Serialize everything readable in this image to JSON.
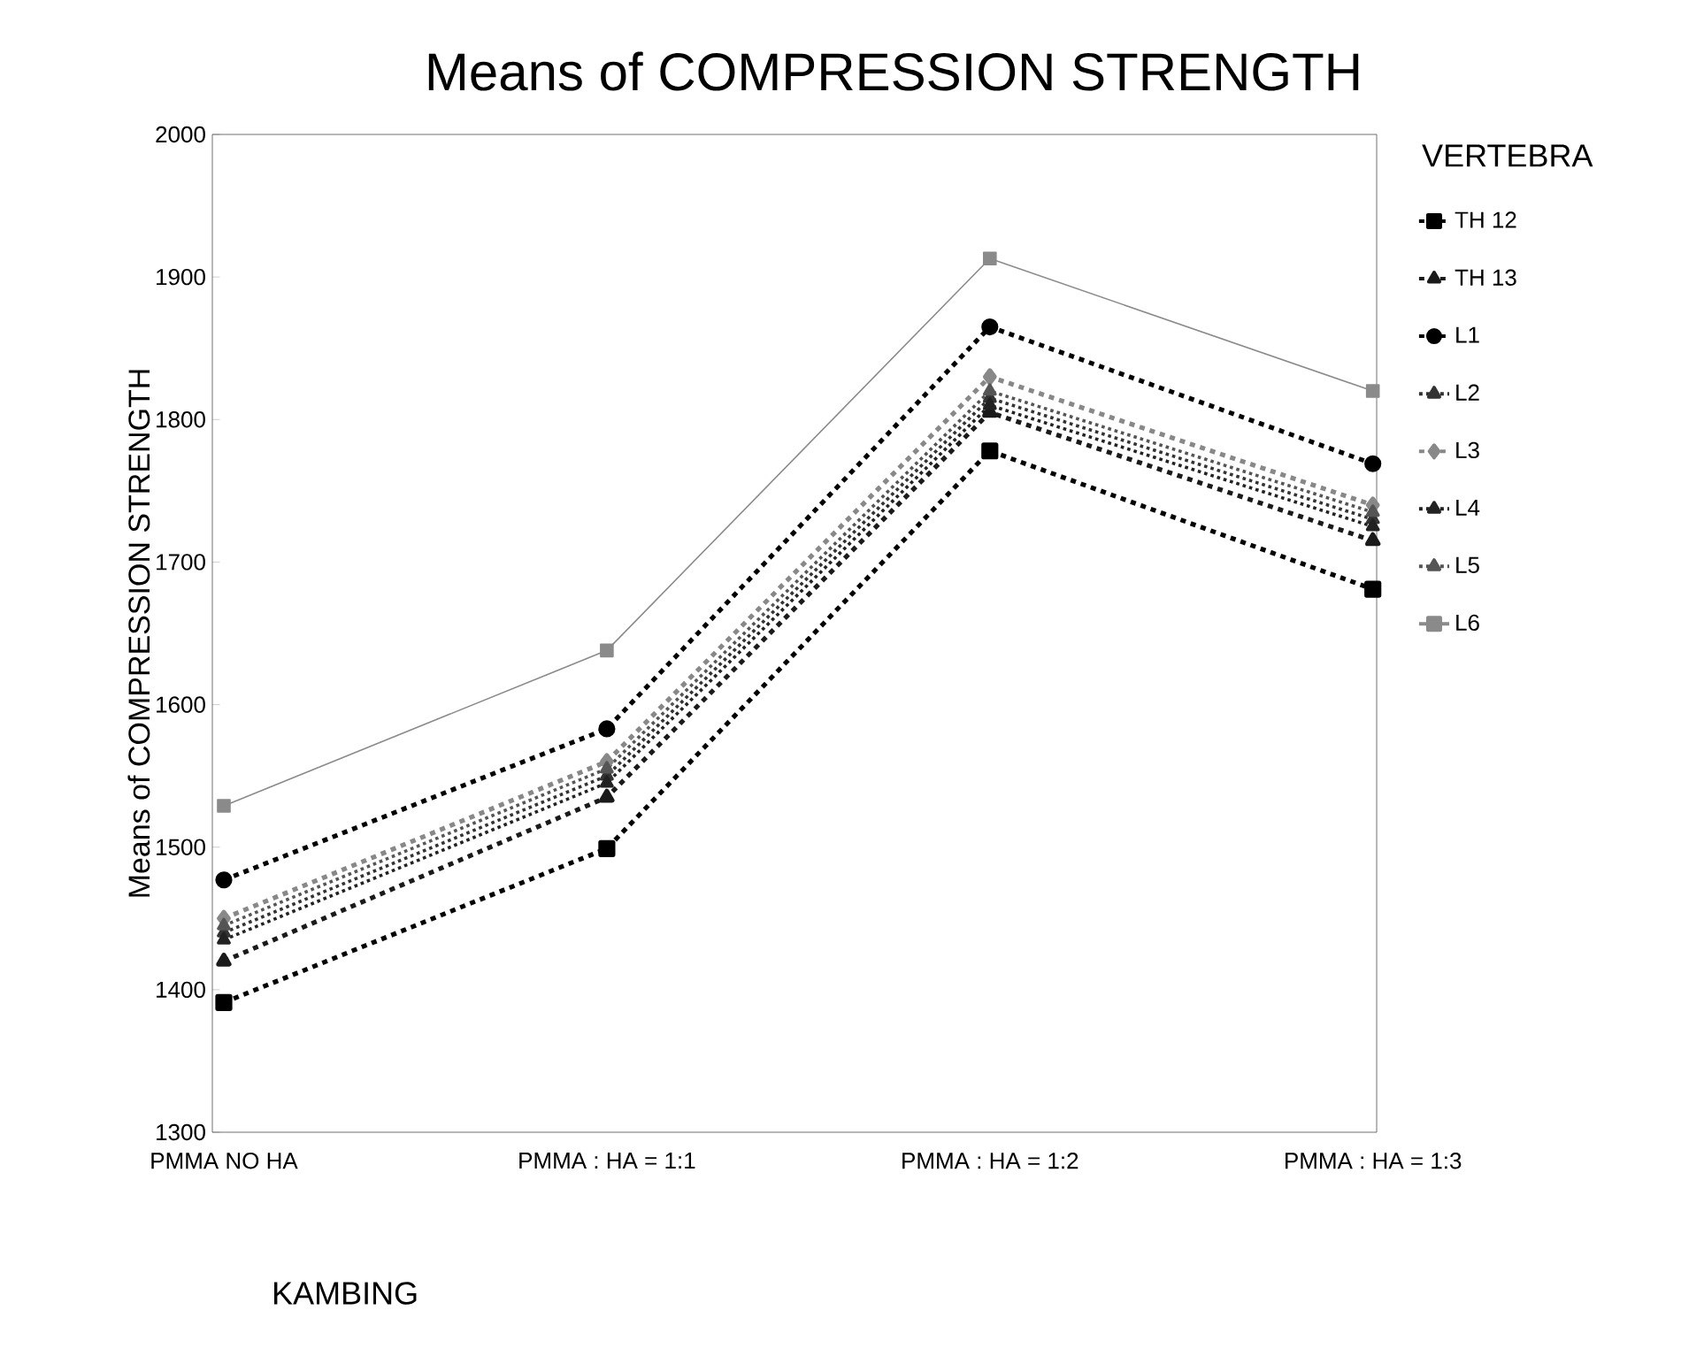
{
  "chart_data": {
    "type": "line",
    "title": "Means of COMPRESSION STRENGTH",
    "xlabel": "KAMBING",
    "ylabel": "Means of COMPRESSION STRENGTH",
    "legend_title": "VERTEBRA",
    "categories": [
      "PMMA NO HA",
      "PMMA : HA = 1:1",
      "PMMA : HA = 1:2",
      "PMMA : HA = 1:3"
    ],
    "ylim": [
      1300,
      2000
    ],
    "yticks": [
      1300,
      1400,
      1500,
      1600,
      1700,
      1800,
      1900,
      2000
    ],
    "legend": "right",
    "series": [
      {
        "name": "TH 12",
        "color": "#000000",
        "marker": "square",
        "line_style": "dashed",
        "values": [
          1391,
          1499,
          1778,
          1681
        ]
      },
      {
        "name": "TH 13",
        "color": "#1a1a1a",
        "marker": "triangle",
        "line_style": "dashed",
        "values": [
          1420,
          1535,
          1805,
          1715
        ]
      },
      {
        "name": "L1",
        "color": "#000000",
        "marker": "circle",
        "line_style": "dashed",
        "values": [
          1477,
          1583,
          1865,
          1769
        ]
      },
      {
        "name": "L2",
        "color": "#333333",
        "marker": "triangle",
        "line_style": "dotted",
        "values": [
          1440,
          1550,
          1815,
          1730
        ]
      },
      {
        "name": "L3",
        "color": "#888888",
        "marker": "diamond",
        "line_style": "dashed",
        "values": [
          1450,
          1560,
          1830,
          1740
        ]
      },
      {
        "name": "L4",
        "color": "#222222",
        "marker": "triangle",
        "line_style": "dotted",
        "values": [
          1435,
          1545,
          1810,
          1725
        ]
      },
      {
        "name": "L5",
        "color": "#555555",
        "marker": "triangle",
        "line_style": "dotted",
        "values": [
          1445,
          1555,
          1820,
          1735
        ]
      },
      {
        "name": "L6",
        "color": "#8a8a8a",
        "marker": "square",
        "line_style": "solid",
        "values": [
          1529,
          1638,
          1913,
          1820
        ]
      }
    ]
  }
}
